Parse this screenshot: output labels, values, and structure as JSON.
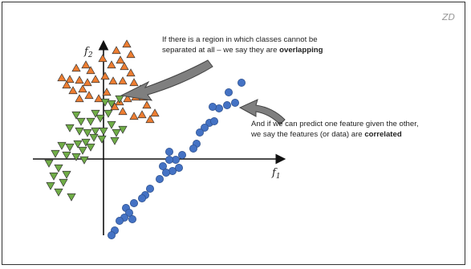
{
  "watermark": "ZD",
  "axes": {
    "x_label": "f",
    "x_sub": "1",
    "y_label": "f",
    "y_sub": "2"
  },
  "annotations": {
    "overlap": {
      "line1": "If there is a region in which classes cannot be",
      "line2_prefix": "separated at all – we say they are ",
      "line2_bold": "overlapping"
    },
    "correlated": {
      "line1": "And if we can predict one feature given the other,",
      "line2_prefix": "we say the features (or data) are ",
      "line2_bold": "correlated"
    }
  },
  "colors": {
    "orange": "#ED7D31",
    "green": "#70AD47",
    "blue": "#4472C4",
    "outline": "#333333",
    "arrow_fill": "#7F7F7F"
  },
  "points": {
    "orange_triangles_up": [
      [
        142,
        60
      ],
      [
        155,
        52
      ],
      [
        160,
        65
      ],
      [
        147,
        72
      ],
      [
        136,
        78
      ],
      [
        152,
        80
      ],
      [
        160,
        88
      ],
      [
        125,
        70
      ],
      [
        110,
        85
      ],
      [
        104,
        78
      ],
      [
        92,
        82
      ],
      [
        84,
        96
      ],
      [
        96,
        97
      ],
      [
        74,
        94
      ],
      [
        80,
        103
      ],
      [
        88,
        110
      ],
      [
        100,
        108
      ],
      [
        106,
        100
      ],
      [
        116,
        96
      ],
      [
        128,
        92
      ],
      [
        138,
        98
      ],
      [
        150,
        98
      ],
      [
        164,
        100
      ],
      [
        172,
        108
      ],
      [
        176,
        118
      ],
      [
        166,
        118
      ],
      [
        156,
        120
      ],
      [
        146,
        124
      ],
      [
        180,
        128
      ],
      [
        190,
        138
      ],
      [
        184,
        146
      ],
      [
        174,
        140
      ],
      [
        164,
        142
      ],
      [
        150,
        136
      ],
      [
        140,
        130
      ],
      [
        130,
        112
      ],
      [
        120,
        120
      ],
      [
        108,
        116
      ],
      [
        96,
        120
      ]
    ],
    "green_triangles_down": [
      [
        146,
        120
      ],
      [
        136,
        126
      ],
      [
        128,
        124
      ],
      [
        132,
        138
      ],
      [
        122,
        144
      ],
      [
        116,
        138
      ],
      [
        110,
        148
      ],
      [
        98,
        148
      ],
      [
        92,
        140
      ],
      [
        84,
        156
      ],
      [
        96,
        160
      ],
      [
        106,
        162
      ],
      [
        116,
        160
      ],
      [
        126,
        160
      ],
      [
        136,
        152
      ],
      [
        142,
        162
      ],
      [
        150,
        158
      ],
      [
        140,
        172
      ],
      [
        124,
        170
      ],
      [
        114,
        168
      ],
      [
        104,
        174
      ],
      [
        94,
        176
      ],
      [
        84,
        180
      ],
      [
        74,
        178
      ],
      [
        66,
        188
      ],
      [
        80,
        190
      ],
      [
        92,
        192
      ],
      [
        102,
        196
      ],
      [
        58,
        200
      ],
      [
        70,
        206
      ],
      [
        80,
        214
      ],
      [
        64,
        216
      ],
      [
        76,
        224
      ],
      [
        70,
        236
      ],
      [
        86,
        242
      ],
      [
        60,
        228
      ],
      [
        100,
        184
      ],
      [
        110,
        180
      ]
    ],
    "blue_circles": [
      [
        298,
        100
      ],
      [
        282,
        112
      ],
      [
        290,
        125
      ],
      [
        280,
        128
      ],
      [
        270,
        132
      ],
      [
        262,
        130
      ],
      [
        258,
        150
      ],
      [
        264,
        148
      ],
      [
        252,
        156
      ],
      [
        246,
        162
      ],
      [
        242,
        176
      ],
      [
        238,
        182
      ],
      [
        224,
        190
      ],
      [
        216,
        196
      ],
      [
        208,
        196
      ],
      [
        200,
        204
      ],
      [
        212,
        210
      ],
      [
        220,
        206
      ],
      [
        204,
        212
      ],
      [
        196,
        220
      ],
      [
        184,
        232
      ],
      [
        178,
        240
      ],
      [
        174,
        244
      ],
      [
        164,
        250
      ],
      [
        154,
        256
      ],
      [
        158,
        262
      ],
      [
        152,
        268
      ],
      [
        146,
        272
      ],
      [
        140,
        284
      ],
      [
        136,
        290
      ],
      [
        162,
        270
      ],
      [
        208,
        186
      ]
    ]
  }
}
